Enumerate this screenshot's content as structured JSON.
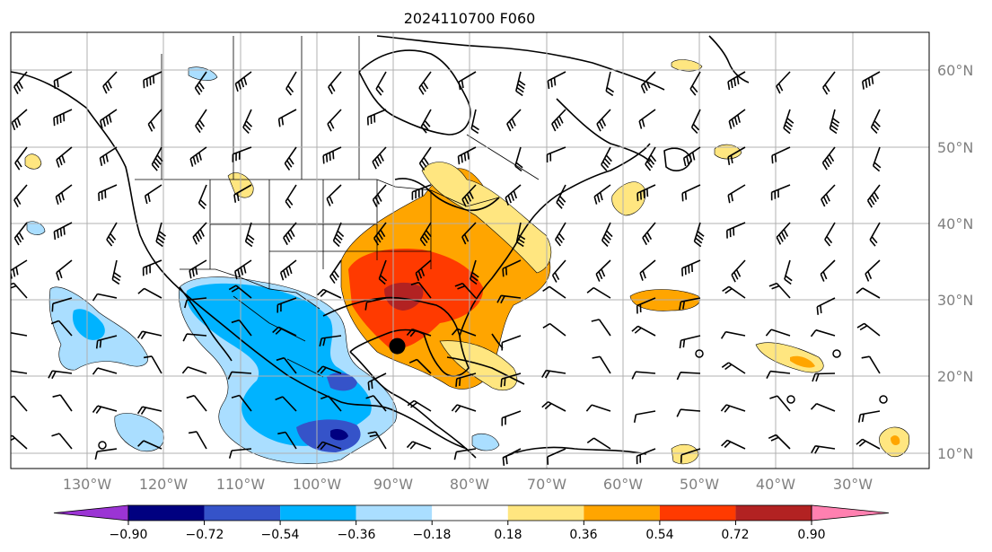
{
  "title": "2024110700 F060",
  "map": {
    "lon_range": [
      -140,
      -20
    ],
    "lat_range": [
      8,
      65
    ],
    "lat_labels": [
      "10°N",
      "20°N",
      "30°N",
      "40°N",
      "50°N",
      "60°N"
    ],
    "lon_labels": [
      "130°W",
      "120°W",
      "110°W",
      "100°W",
      "90°W",
      "80°W",
      "70°W",
      "60°W",
      "50°W",
      "40°W",
      "30°W"
    ],
    "gridlines": true,
    "marker": {
      "lon": -89.5,
      "lat": 24,
      "color": "#000000"
    }
  },
  "colorbar": {
    "ticks": [
      "−0.90",
      "−0.72",
      "−0.54",
      "−0.36",
      "−0.18",
      "0.18",
      "0.36",
      "0.54",
      "0.72",
      "0.90"
    ],
    "colors": [
      "#9b34d4",
      "#000080",
      "#3553c9",
      "#00b3ff",
      "#aadeff",
      "#ffffff",
      "#ffe680",
      "#ffa500",
      "#ff3a00",
      "#b22222",
      "#ff80b0"
    ],
    "extend": "both"
  },
  "fields": {
    "positive": [
      {
        "name": "southeast-us-anomaly",
        "level": "0.18",
        "center": [
          -82,
          31
        ],
        "extent": [
          12,
          9
        ]
      },
      {
        "name": "southeast-us-anomaly-inner",
        "level": "0.36",
        "center": [
          -84,
          31
        ],
        "extent": [
          10,
          6
        ]
      },
      {
        "name": "southeast-us-anomaly-core",
        "level": "0.54",
        "center": [
          -87,
          30
        ],
        "extent": [
          6,
          4
        ]
      },
      {
        "name": "atlantic-anomaly-30n",
        "level": "0.36",
        "center": [
          -51,
          30
        ],
        "extent": [
          4,
          1
        ]
      },
      {
        "name": "atlantic-anomaly-24n",
        "level": "0.36",
        "center": [
          -38,
          23
        ],
        "extent": [
          3,
          1.2
        ]
      },
      {
        "name": "atlantic-anomaly-12n",
        "level": "0.36",
        "center": [
          -24,
          11
        ],
        "extent": [
          2,
          1.6
        ]
      }
    ],
    "negative": [
      {
        "name": "mexico-anomaly",
        "level": "-0.36",
        "center": [
          -101,
          23
        ],
        "extent": [
          10,
          6
        ]
      },
      {
        "name": "caribbean-anomaly",
        "level": "-0.54",
        "center": [
          -98,
          13
        ],
        "extent": [
          5,
          2.5
        ]
      },
      {
        "name": "caribbean-anomaly-core",
        "level": "-0.72",
        "center": [
          -96,
          11.5
        ],
        "extent": [
          1.2,
          0.8
        ]
      },
      {
        "name": "pacific-anomaly",
        "level": "-0.18",
        "center": [
          -128,
          26
        ],
        "extent": [
          5,
          4
        ]
      }
    ]
  }
}
